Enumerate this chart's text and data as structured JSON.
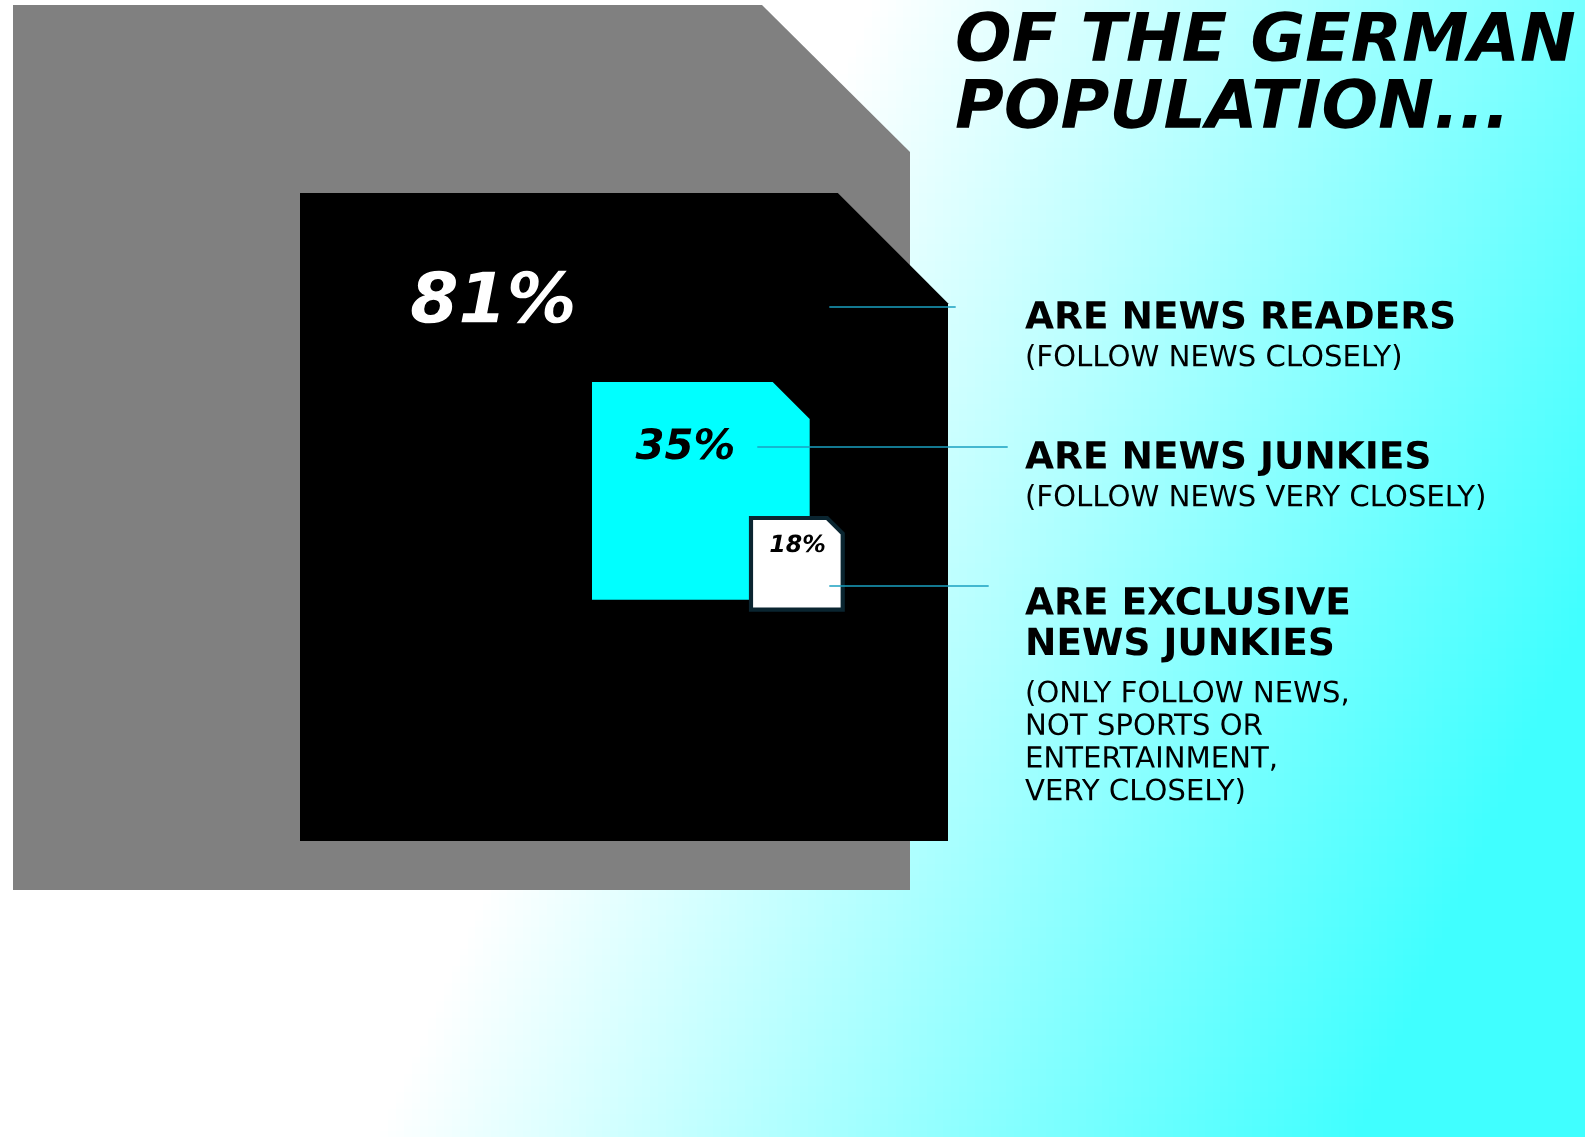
{
  "chart_data": {
    "type": "other",
    "title": "OF THE GERMAN\nPOPULATION...",
    "categories": [
      "ARE NEWS READERS",
      "ARE NEWS JUNKIES",
      "ARE EXCLUSIVE\nNEWS JUNKIES"
    ],
    "annotations": [
      "(FOLLOW NEWS CLOSELY)",
      "(FOLLOW NEWS VERY CLOSELY)",
      "(ONLY FOLLOW NEWS,\nNOT SPORTS OR\nENTERTAINMENT,\nVERY CLOSELY)"
    ],
    "values": [
      81,
      35,
      18
    ],
    "value_labels": [
      "81%",
      "35%",
      "18%"
    ],
    "colors": [
      "#000000",
      "#00ffff",
      "#ffffff"
    ]
  }
}
